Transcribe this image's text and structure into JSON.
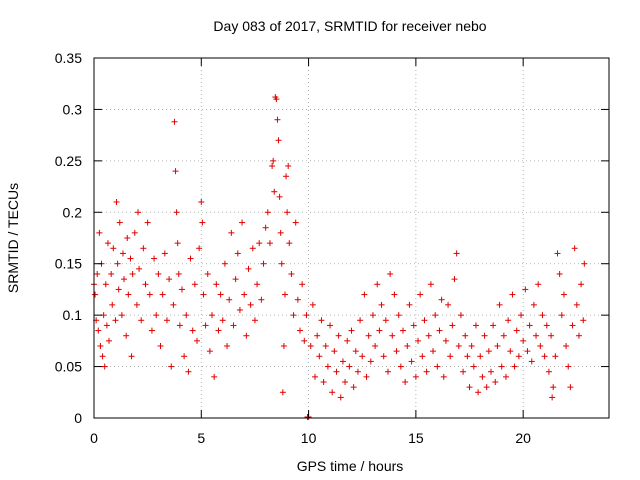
{
  "chart_data": {
    "type": "scatter",
    "title": "Day 083 of 2017, SRMTID for receiver nebo",
    "xlabel": "GPS time / hours",
    "ylabel": "SRMTID / TECUs",
    "xlim": [
      0,
      24
    ],
    "ylim": [
      0,
      0.35
    ],
    "xticks": [
      0,
      5,
      10,
      15,
      20
    ],
    "xtick_labels": [
      "0",
      "5",
      "10",
      "15",
      "20"
    ],
    "yticks": [
      0,
      0.05,
      0.1,
      0.15,
      0.2,
      0.25,
      0.3,
      0.35
    ],
    "ytick_labels": [
      "0",
      "0.05",
      "0.1",
      "0.15",
      "0.2",
      "0.25",
      "0.3",
      "0.35"
    ],
    "grid": true,
    "marker": "+",
    "color": "#e00000",
    "series": [
      {
        "name": "SRMTID",
        "points": [
          [
            0.0,
            0.13
          ],
          [
            0.05,
            0.12
          ],
          [
            0.1,
            0.095
          ],
          [
            0.15,
            0.14
          ],
          [
            0.2,
            0.085
          ],
          [
            0.25,
            0.18
          ],
          [
            0.3,
            0.07
          ],
          [
            0.35,
            0.15
          ],
          [
            0.4,
            0.06
          ],
          [
            0.45,
            0.1
          ],
          [
            0.5,
            0.05
          ],
          [
            0.55,
            0.13
          ],
          [
            0.6,
            0.09
          ],
          [
            0.65,
            0.17
          ],
          [
            0.7,
            0.075
          ],
          [
            0.8,
            0.14
          ],
          [
            0.85,
            0.11
          ],
          [
            0.9,
            0.165
          ],
          [
            1.0,
            0.095
          ],
          [
            1.05,
            0.21
          ],
          [
            1.1,
            0.15
          ],
          [
            1.15,
            0.125
          ],
          [
            1.2,
            0.19
          ],
          [
            1.3,
            0.1
          ],
          [
            1.35,
            0.16
          ],
          [
            1.4,
            0.135
          ],
          [
            1.5,
            0.08
          ],
          [
            1.55,
            0.175
          ],
          [
            1.6,
            0.12
          ],
          [
            1.7,
            0.155
          ],
          [
            1.75,
            0.06
          ],
          [
            1.8,
            0.14
          ],
          [
            1.9,
            0.18
          ],
          [
            2.0,
            0.11
          ],
          [
            2.05,
            0.2
          ],
          [
            2.1,
            0.145
          ],
          [
            2.2,
            0.095
          ],
          [
            2.3,
            0.165
          ],
          [
            2.4,
            0.13
          ],
          [
            2.5,
            0.19
          ],
          [
            2.6,
            0.12
          ],
          [
            2.7,
            0.085
          ],
          [
            2.8,
            0.155
          ],
          [
            2.9,
            0.1
          ],
          [
            3.0,
            0.14
          ],
          [
            3.1,
            0.07
          ],
          [
            3.2,
            0.12
          ],
          [
            3.3,
            0.16
          ],
          [
            3.4,
            0.095
          ],
          [
            3.5,
            0.135
          ],
          [
            3.6,
            0.05
          ],
          [
            3.7,
            0.11
          ],
          [
            3.75,
            0.288
          ],
          [
            3.8,
            0.24
          ],
          [
            3.85,
            0.2
          ],
          [
            3.9,
            0.17
          ],
          [
            3.95,
            0.14
          ],
          [
            4.0,
            0.09
          ],
          [
            4.1,
            0.125
          ],
          [
            4.2,
            0.06
          ],
          [
            4.3,
            0.1
          ],
          [
            4.4,
            0.045
          ],
          [
            4.5,
            0.155
          ],
          [
            4.6,
            0.085
          ],
          [
            4.7,
            0.13
          ],
          [
            4.8,
            0.075
          ],
          [
            4.9,
            0.165
          ],
          [
            5.0,
            0.21
          ],
          [
            5.05,
            0.19
          ],
          [
            5.1,
            0.12
          ],
          [
            5.2,
            0.09
          ],
          [
            5.3,
            0.14
          ],
          [
            5.4,
            0.065
          ],
          [
            5.5,
            0.1
          ],
          [
            5.6,
            0.04
          ],
          [
            5.7,
            0.13
          ],
          [
            5.8,
            0.085
          ],
          [
            5.9,
            0.12
          ],
          [
            6.0,
            0.095
          ],
          [
            6.1,
            0.15
          ],
          [
            6.2,
            0.07
          ],
          [
            6.3,
            0.115
          ],
          [
            6.4,
            0.18
          ],
          [
            6.5,
            0.09
          ],
          [
            6.6,
            0.135
          ],
          [
            6.7,
            0.16
          ],
          [
            6.8,
            0.105
          ],
          [
            6.9,
            0.19
          ],
          [
            7.0,
            0.12
          ],
          [
            7.1,
            0.08
          ],
          [
            7.2,
            0.145
          ],
          [
            7.3,
            0.11
          ],
          [
            7.4,
            0.165
          ],
          [
            7.5,
            0.095
          ],
          [
            7.6,
            0.13
          ],
          [
            7.7,
            0.17
          ],
          [
            7.8,
            0.115
          ],
          [
            7.9,
            0.15
          ],
          [
            8.0,
            0.185
          ],
          [
            8.1,
            0.2
          ],
          [
            8.2,
            0.17
          ],
          [
            8.3,
            0.245
          ],
          [
            8.35,
            0.25
          ],
          [
            8.4,
            0.22
          ],
          [
            8.45,
            0.312
          ],
          [
            8.5,
            0.31
          ],
          [
            8.55,
            0.29
          ],
          [
            8.6,
            0.27
          ],
          [
            8.65,
            0.215
          ],
          [
            8.7,
            0.18
          ],
          [
            8.75,
            0.15
          ],
          [
            8.8,
            0.025
          ],
          [
            8.85,
            0.07
          ],
          [
            8.9,
            0.12
          ],
          [
            8.95,
            0.235
          ],
          [
            9.0,
            0.2
          ],
          [
            9.05,
            0.245
          ],
          [
            9.1,
            0.17
          ],
          [
            9.2,
            0.14
          ],
          [
            9.3,
            0.1
          ],
          [
            9.4,
            0.19
          ],
          [
            9.5,
            0.115
          ],
          [
            9.6,
            0.085
          ],
          [
            9.7,
            0.13
          ],
          [
            9.8,
            0.075
          ],
          [
            9.9,
            0.1
          ],
          [
            9.95,
            0.001
          ],
          [
            10.0,
            0.001
          ],
          [
            10.1,
            0.07
          ],
          [
            10.2,
            0.11
          ],
          [
            10.3,
            0.04
          ],
          [
            10.4,
            0.08
          ],
          [
            10.5,
            0.06
          ],
          [
            10.6,
            0.095
          ],
          [
            10.7,
            0.035
          ],
          [
            10.8,
            0.07
          ],
          [
            10.9,
            0.05
          ],
          [
            11.0,
            0.09
          ],
          [
            11.1,
            0.025
          ],
          [
            11.2,
            0.065
          ],
          [
            11.3,
            0.045
          ],
          [
            11.4,
            0.08
          ],
          [
            11.5,
            0.02
          ],
          [
            11.6,
            0.055
          ],
          [
            11.7,
            0.035
          ],
          [
            11.8,
            0.075
          ],
          [
            11.9,
            0.05
          ],
          [
            12.0,
            0.085
          ],
          [
            12.1,
            0.03
          ],
          [
            12.2,
            0.065
          ],
          [
            12.3,
            0.045
          ],
          [
            12.4,
            0.095
          ],
          [
            12.5,
            0.06
          ],
          [
            12.6,
            0.12
          ],
          [
            12.7,
            0.04
          ],
          [
            12.8,
            0.08
          ],
          [
            12.9,
            0.055
          ],
          [
            13.0,
            0.1
          ],
          [
            13.1,
            0.07
          ],
          [
            13.2,
            0.13
          ],
          [
            13.3,
            0.085
          ],
          [
            13.4,
            0.11
          ],
          [
            13.5,
            0.06
          ],
          [
            13.6,
            0.095
          ],
          [
            13.7,
            0.045
          ],
          [
            13.8,
            0.14
          ],
          [
            13.9,
            0.08
          ],
          [
            14.0,
            0.12
          ],
          [
            14.1,
            0.065
          ],
          [
            14.2,
            0.1
          ],
          [
            14.3,
            0.05
          ],
          [
            14.4,
            0.085
          ],
          [
            14.5,
            0.035
          ],
          [
            14.6,
            0.07
          ],
          [
            14.7,
            0.11
          ],
          [
            14.8,
            0.055
          ],
          [
            14.9,
            0.09
          ],
          [
            15.0,
            0.04
          ],
          [
            15.1,
            0.075
          ],
          [
            15.2,
            0.12
          ],
          [
            15.3,
            0.06
          ],
          [
            15.4,
            0.095
          ],
          [
            15.5,
            0.045
          ],
          [
            15.6,
            0.08
          ],
          [
            15.7,
            0.13
          ],
          [
            15.8,
            0.065
          ],
          [
            15.9,
            0.1
          ],
          [
            16.0,
            0.05
          ],
          [
            16.1,
            0.085
          ],
          [
            16.2,
            0.115
          ],
          [
            16.3,
            0.04
          ],
          [
            16.4,
            0.075
          ],
          [
            16.5,
            0.11
          ],
          [
            16.6,
            0.06
          ],
          [
            16.7,
            0.09
          ],
          [
            16.8,
            0.135
          ],
          [
            16.9,
            0.16
          ],
          [
            17.0,
            0.07
          ],
          [
            17.1,
            0.1
          ],
          [
            17.2,
            0.045
          ],
          [
            17.3,
            0.08
          ],
          [
            17.4,
            0.06
          ],
          [
            17.5,
            0.03
          ],
          [
            17.6,
            0.07
          ],
          [
            17.7,
            0.05
          ],
          [
            17.8,
            0.09
          ],
          [
            17.9,
            0.025
          ],
          [
            18.0,
            0.06
          ],
          [
            18.1,
            0.04
          ],
          [
            18.2,
            0.08
          ],
          [
            18.3,
            0.03
          ],
          [
            18.4,
            0.065
          ],
          [
            18.5,
            0.045
          ],
          [
            18.6,
            0.09
          ],
          [
            18.7,
            0.035
          ],
          [
            18.8,
            0.07
          ],
          [
            18.9,
            0.11
          ],
          [
            19.0,
            0.05
          ],
          [
            19.1,
            0.08
          ],
          [
            19.2,
            0.04
          ],
          [
            19.3,
            0.095
          ],
          [
            19.4,
            0.065
          ],
          [
            19.5,
            0.12
          ],
          [
            19.6,
            0.05
          ],
          [
            19.7,
            0.085
          ],
          [
            19.8,
            0.06
          ],
          [
            19.9,
            0.1
          ],
          [
            20.0,
            0.075
          ],
          [
            20.1,
            0.125
          ],
          [
            20.2,
            0.065
          ],
          [
            20.3,
            0.09
          ],
          [
            20.4,
            0.055
          ],
          [
            20.5,
            0.11
          ],
          [
            20.6,
            0.08
          ],
          [
            20.7,
            0.13
          ],
          [
            20.8,
            0.07
          ],
          [
            20.9,
            0.1
          ],
          [
            21.0,
            0.06
          ],
          [
            21.1,
            0.09
          ],
          [
            21.2,
            0.045
          ],
          [
            21.3,
            0.08
          ],
          [
            21.35,
            0.02
          ],
          [
            21.4,
            0.03
          ],
          [
            21.5,
            0.06
          ],
          [
            21.6,
            0.16
          ],
          [
            21.7,
            0.14
          ],
          [
            21.8,
            0.1
          ],
          [
            21.9,
            0.12
          ],
          [
            22.0,
            0.07
          ],
          [
            22.1,
            0.05
          ],
          [
            22.2,
            0.03
          ],
          [
            22.3,
            0.09
          ],
          [
            22.4,
            0.165
          ],
          [
            22.5,
            0.11
          ],
          [
            22.6,
            0.08
          ],
          [
            22.7,
            0.13
          ],
          [
            22.8,
            0.095
          ],
          [
            22.85,
            0.15
          ]
        ]
      }
    ]
  }
}
